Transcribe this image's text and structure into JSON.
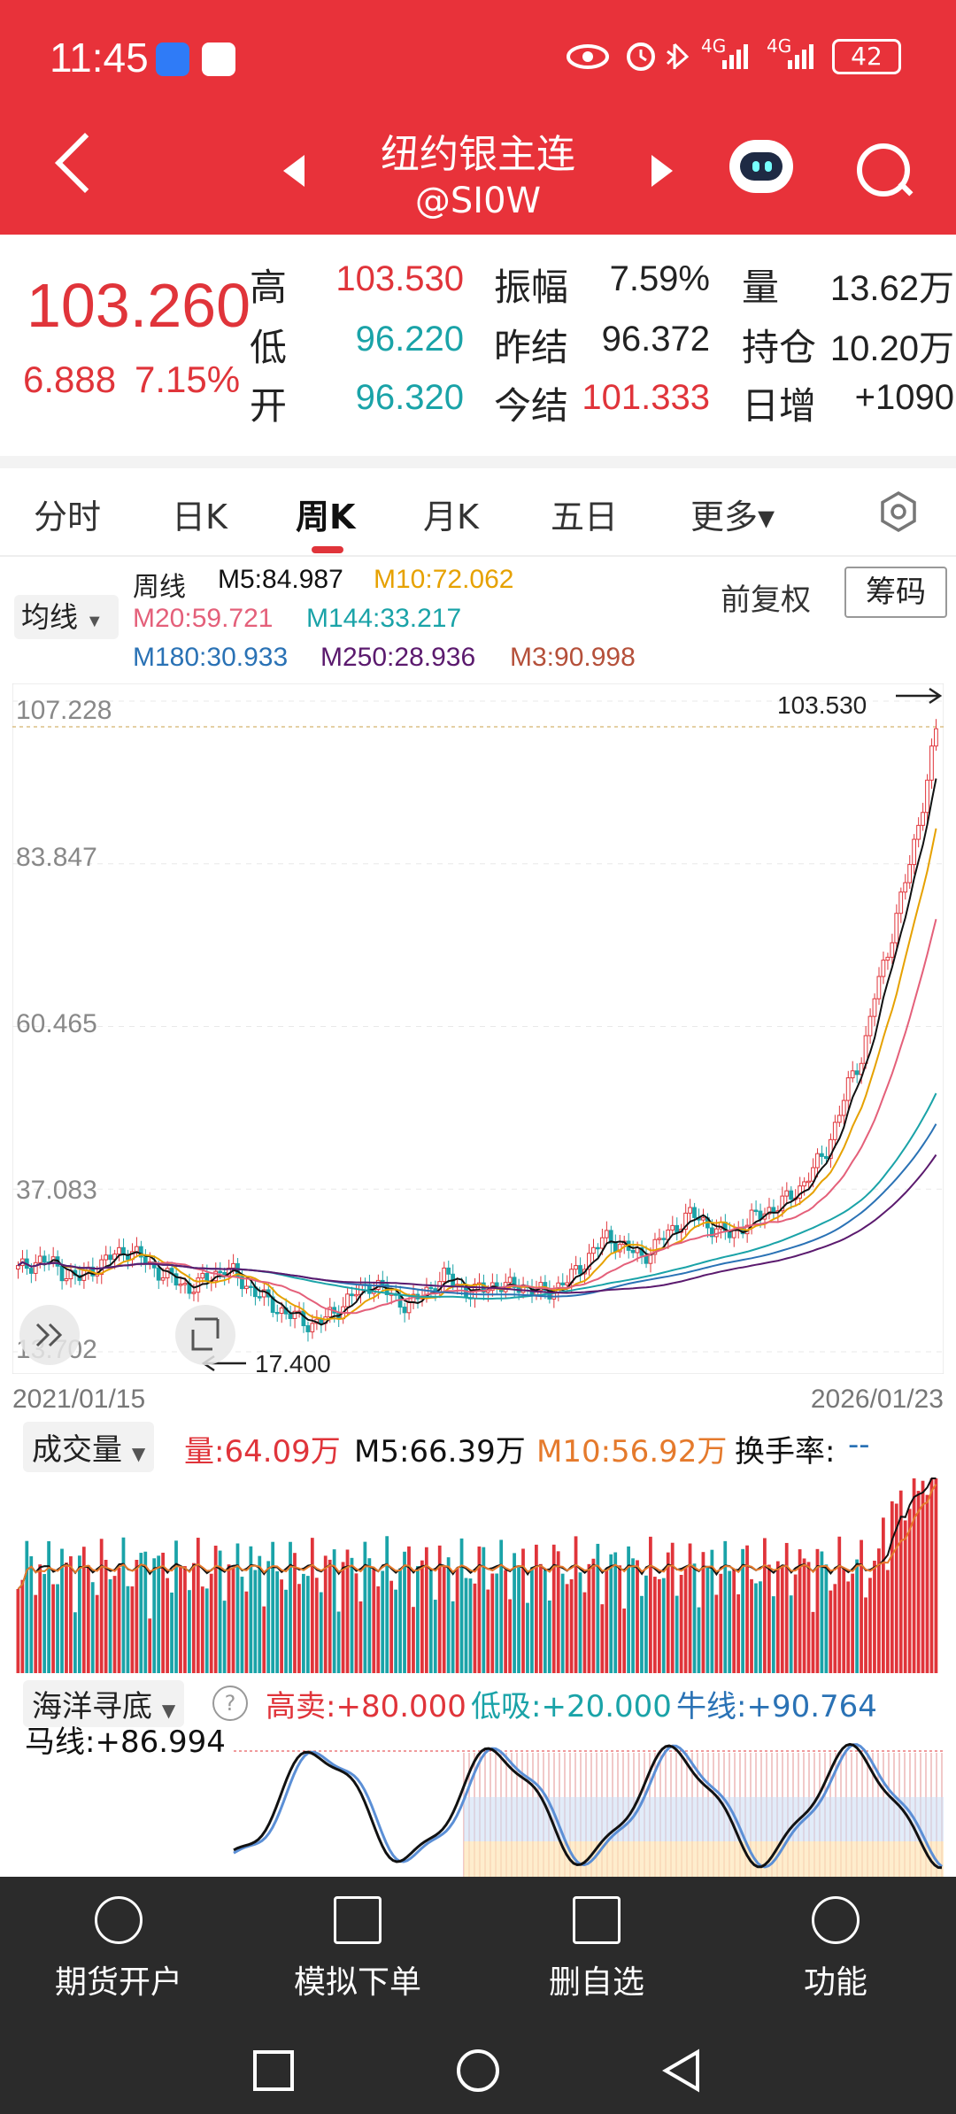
{
  "status_bar": {
    "time": "11:45",
    "battery": "42",
    "signal_left": "4G",
    "signal_right": "4G"
  },
  "nav": {
    "title": "纽约银主连",
    "subtitle": "@SI0W"
  },
  "quote": {
    "last": "103.260",
    "change": "6.888",
    "change_pct": "7.15%",
    "labels": {
      "high": "高",
      "low": "低",
      "open": "开",
      "amplitude": "振幅",
      "prev_settle": "昨结",
      "today_settle": "今结",
      "volume": "量",
      "open_interest": "持仓",
      "daily_increase": "日增"
    },
    "high": "103.530",
    "low": "96.220",
    "open": "96.320",
    "amplitude": "7.59%",
    "prev_settle": "96.372",
    "today_settle": "101.333",
    "volume": "13.62万",
    "open_interest": "10.20万",
    "daily_increase": "+1090"
  },
  "tabs": [
    "分时",
    "日K",
    "周K",
    "月K",
    "五日",
    "更多▾"
  ],
  "chart": {
    "indicator_select": "均线",
    "period_label": "周线",
    "ma": {
      "m5": "M5:84.987",
      "m10": "M10:72.062",
      "m20": "M20:59.721",
      "m144": "M144:33.217",
      "m180": "M180:30.933",
      "m250": "M250:28.936",
      "m3": "M3:90.998"
    },
    "adjust_label": "前复权",
    "chip_button": "筹码",
    "y_ticks": [
      "107.228",
      "83.847",
      "60.465",
      "37.083",
      "13.702"
    ],
    "max_label": "103.530",
    "min_label": "17.400",
    "date_start": "2021/01/15",
    "date_end": "2026/01/23",
    "colors": {
      "m5": "#111111",
      "m10": "#e6a100",
      "m20": "#e4607a",
      "m144": "#1aa3a8",
      "m180": "#2a72b5",
      "m250": "#5b1a6e",
      "m3": "#b5503a"
    }
  },
  "volume": {
    "select": "成交量",
    "vol": "量:64.09万",
    "m5": "M5:66.39万",
    "m10": "M10:56.92万",
    "turnover_label": "换手率:",
    "turnover_value": "--"
  },
  "oscillator": {
    "select": "海洋寻底",
    "sell": "高卖:+80.000",
    "buy": "低吸:+20.000",
    "bull": "牛线:+90.764",
    "horse": "马线:+86.994"
  },
  "bottom_bar": [
    "期货开户",
    "模拟下单",
    "删自选",
    "功能"
  ],
  "chart_data": {
    "type": "candlestick",
    "title": "纽约银主连 周K",
    "x_range": [
      "2021/01/15",
      "2026/01/23"
    ],
    "ylim": [
      13.702,
      107.228
    ],
    "y_ticks": [
      107.228,
      83.847,
      60.465,
      37.083,
      13.702
    ],
    "approx_close_series": [
      25.5,
      26.3,
      27.0,
      26.1,
      24.8,
      24.2,
      25.6,
      26.5,
      27.8,
      28.4,
      27.2,
      25.9,
      24.6,
      23.8,
      22.9,
      23.6,
      24.9,
      25.7,
      24.3,
      22.8,
      21.4,
      20.2,
      19.1,
      18.4,
      17.6,
      18.3,
      19.6,
      21.3,
      22.6,
      23.7,
      22.4,
      21.1,
      20.3,
      21.9,
      23.4,
      24.6,
      23.2,
      22.0,
      22.8,
      23.5,
      22.9,
      23.3,
      22.6,
      22.1,
      23.0,
      24.1,
      26.0,
      28.3,
      30.1,
      29.4,
      28.2,
      27.4,
      28.8,
      30.6,
      32.2,
      33.5,
      32.4,
      31.2,
      30.6,
      31.5,
      32.8,
      33.9,
      34.6,
      35.8,
      37.6,
      39.9,
      42.6,
      47.5,
      52.8,
      56.4,
      65.0,
      70.8,
      78.2,
      84.6,
      93.4,
      103.26
    ],
    "max": 103.53,
    "min": 17.4
  }
}
